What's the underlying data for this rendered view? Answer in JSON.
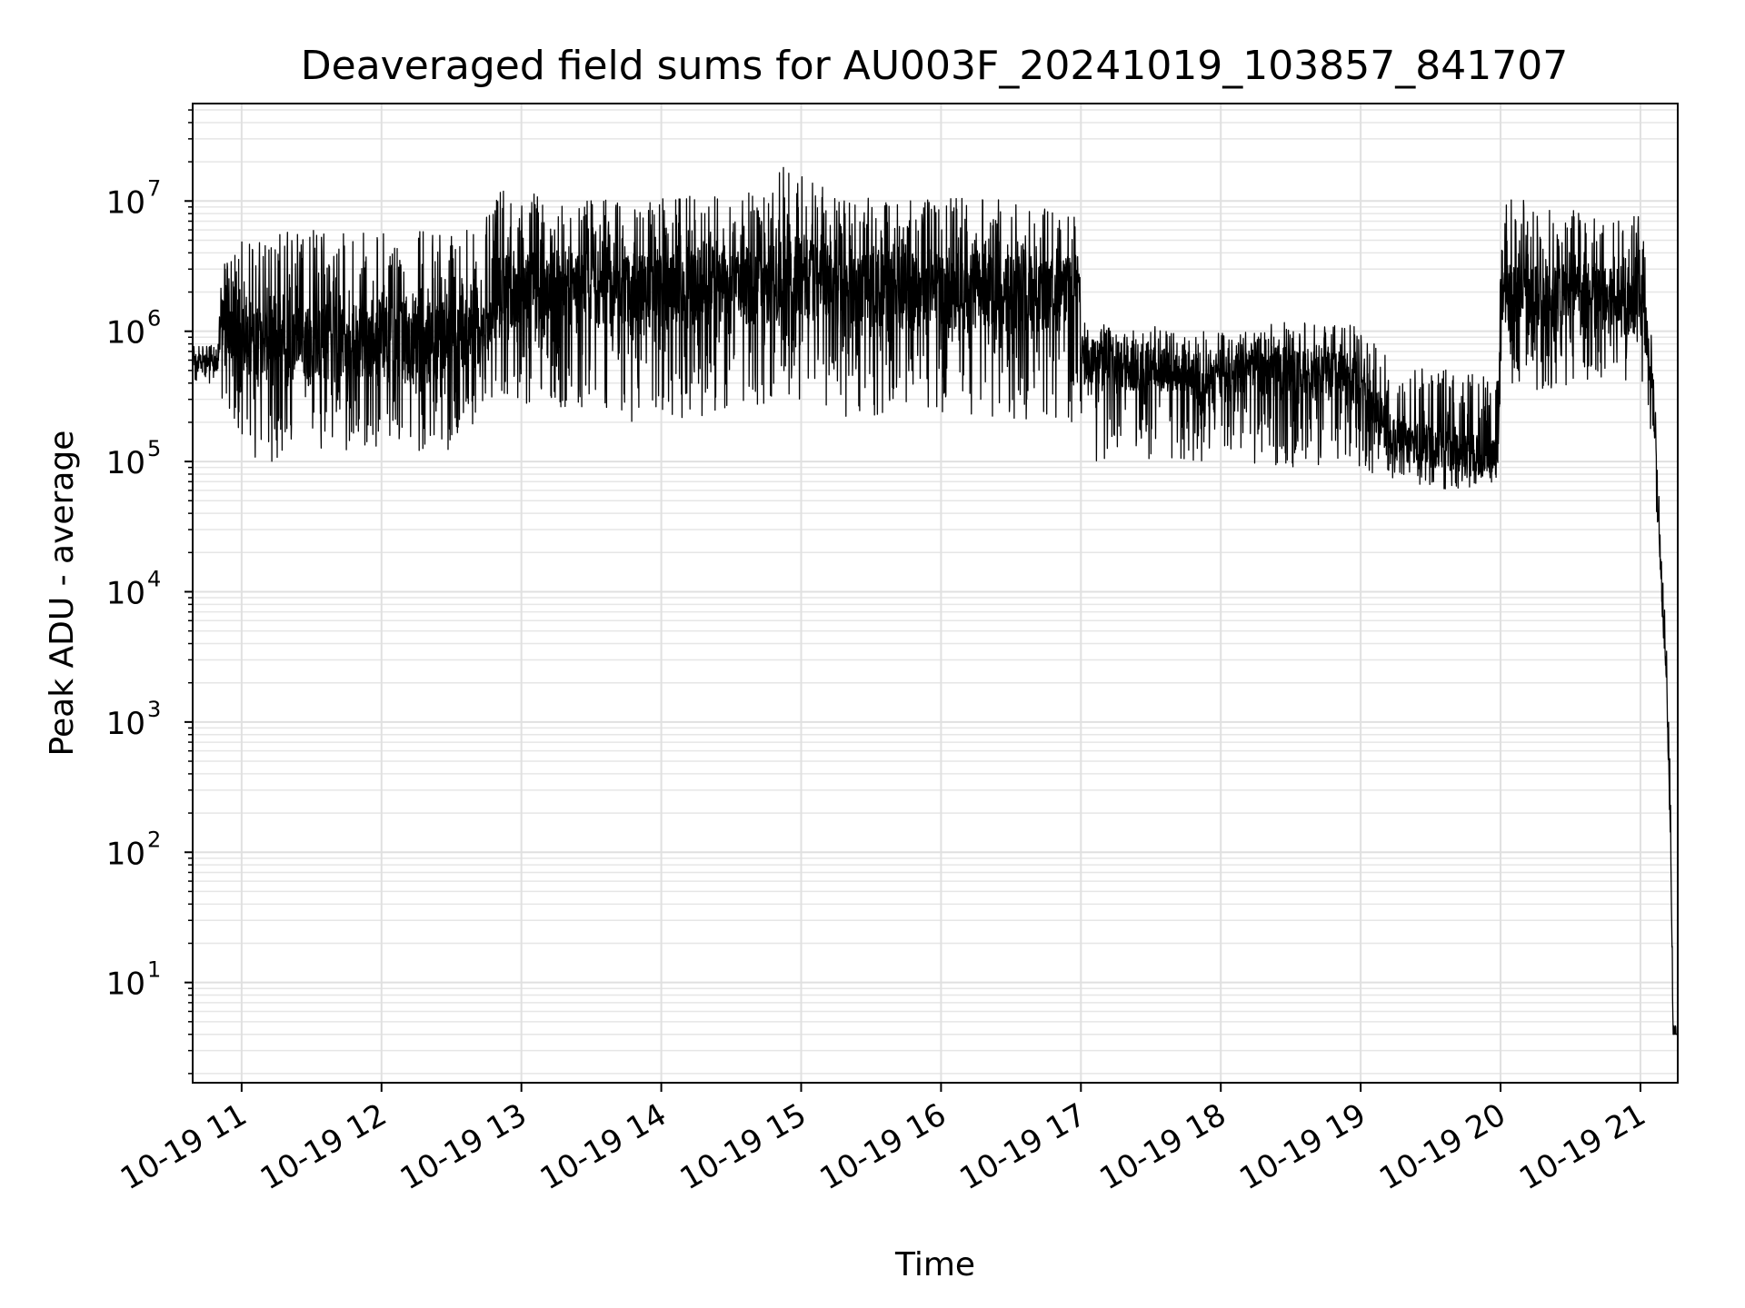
{
  "chart_data": {
    "type": "line",
    "title": "Deaveraged field sums for AU003F_20241019_103857_841707",
    "xlabel": "Time",
    "ylabel": "Peak ADU - average",
    "xscale": "time",
    "yscale": "log",
    "xlim": [
      "2024-10-19T10:39",
      "2024-10-19T21:16"
    ],
    "ylim": [
      1.7,
      56000000
    ],
    "grid": {
      "major": true,
      "minor": true
    },
    "legend": "none",
    "line_color": "#000000",
    "x_tick_labels": [
      "10-19 11",
      "10-19 12",
      "10-19 13",
      "10-19 14",
      "10-19 15",
      "10-19 16",
      "10-19 17",
      "10-19 18",
      "10-19 19",
      "10-19 20",
      "10-19 21"
    ],
    "y_ticks": [
      {
        "base": "10",
        "exp": "1",
        "value": 10
      },
      {
        "base": "10",
        "exp": "2",
        "value": 100
      },
      {
        "base": "10",
        "exp": "3",
        "value": 1000
      },
      {
        "base": "10",
        "exp": "4",
        "value": 10000
      },
      {
        "base": "10",
        "exp": "5",
        "value": 100000
      },
      {
        "base": "10",
        "exp": "6",
        "value": 1000000
      },
      {
        "base": "10",
        "exp": "7",
        "value": 10000000
      }
    ],
    "series": [
      {
        "x": [
          "2024-10-19T10:39",
          "2024-10-19T10:50",
          "2024-10-19T10:51",
          "2024-10-19T11:00",
          "2024-10-19T11:15",
          "2024-10-19T11:30",
          "2024-10-19T11:45",
          "2024-10-19T12:00",
          "2024-10-19T12:15",
          "2024-10-19T12:30",
          "2024-10-19T12:48",
          "2024-10-19T12:50",
          "2024-10-19T13:15",
          "2024-10-19T13:45",
          "2024-10-19T14:15",
          "2024-10-19T14:45",
          "2024-10-19T14:58",
          "2024-10-19T15:15",
          "2024-10-19T15:45",
          "2024-10-19T16:15",
          "2024-10-19T16:45",
          "2024-10-19T16:59",
          "2024-10-19T17:00",
          "2024-10-19T17:30",
          "2024-10-19T18:00",
          "2024-10-19T18:30",
          "2024-10-19T18:59",
          "2024-10-19T19:15",
          "2024-10-19T19:40",
          "2024-10-19T19:59",
          "2024-10-19T20:00",
          "2024-10-19T20:20",
          "2024-10-19T20:40",
          "2024-10-19T21:00",
          "2024-10-19T21:03",
          "2024-10-19T21:06",
          "2024-10-19T21:09",
          "2024-10-19T21:11",
          "2024-10-19T21:13",
          "2024-10-19T21:14",
          "2024-10-19T21:16"
        ],
        "y": [
          600000,
          550000,
          1200000,
          900000,
          800000,
          850000,
          800000,
          900000,
          800000,
          850000,
          1000000,
          2000000,
          2200000,
          2000000,
          2100000,
          2300000,
          2800000,
          2200000,
          2000000,
          2100000,
          1900000,
          2000000,
          600000,
          500000,
          450000,
          500000,
          400000,
          150000,
          120000,
          110000,
          1800000,
          1900000,
          1800000,
          1600000,
          900000,
          200000,
          10000,
          2500,
          100,
          4,
          4
        ],
        "noise_band": {
          "low": [
            400000,
            400000,
            300000,
            100000,
            100000,
            120000,
            110000,
            130000,
            120000,
            110000,
            300000,
            300000,
            250000,
            200000,
            220000,
            250000,
            300000,
            220000,
            200000,
            220000,
            200000,
            200000,
            100000,
            100000,
            100000,
            90000,
            90000,
            70000,
            60000,
            70000,
            400000,
            300000,
            350000,
            300000,
            300000,
            80000,
            8000,
            2000,
            80,
            4,
            4
          ],
          "high": [
            800000,
            800000,
            3000000,
            5000000,
            6000000,
            6500000,
            6000000,
            6000000,
            6500000,
            6000000,
            8000000,
            12000000,
            11000000,
            10000000,
            11000000,
            12000000,
            25000000,
            11000000,
            10000000,
            11000000,
            9000000,
            8000000,
            1200000,
            1100000,
            1000000,
            1200000,
            1100000,
            600000,
            500000,
            500000,
            11000000,
            10000000,
            9000000,
            8000000,
            3000000,
            400000,
            20000,
            5000,
            300,
            5,
            5
          ]
        }
      }
    ]
  }
}
